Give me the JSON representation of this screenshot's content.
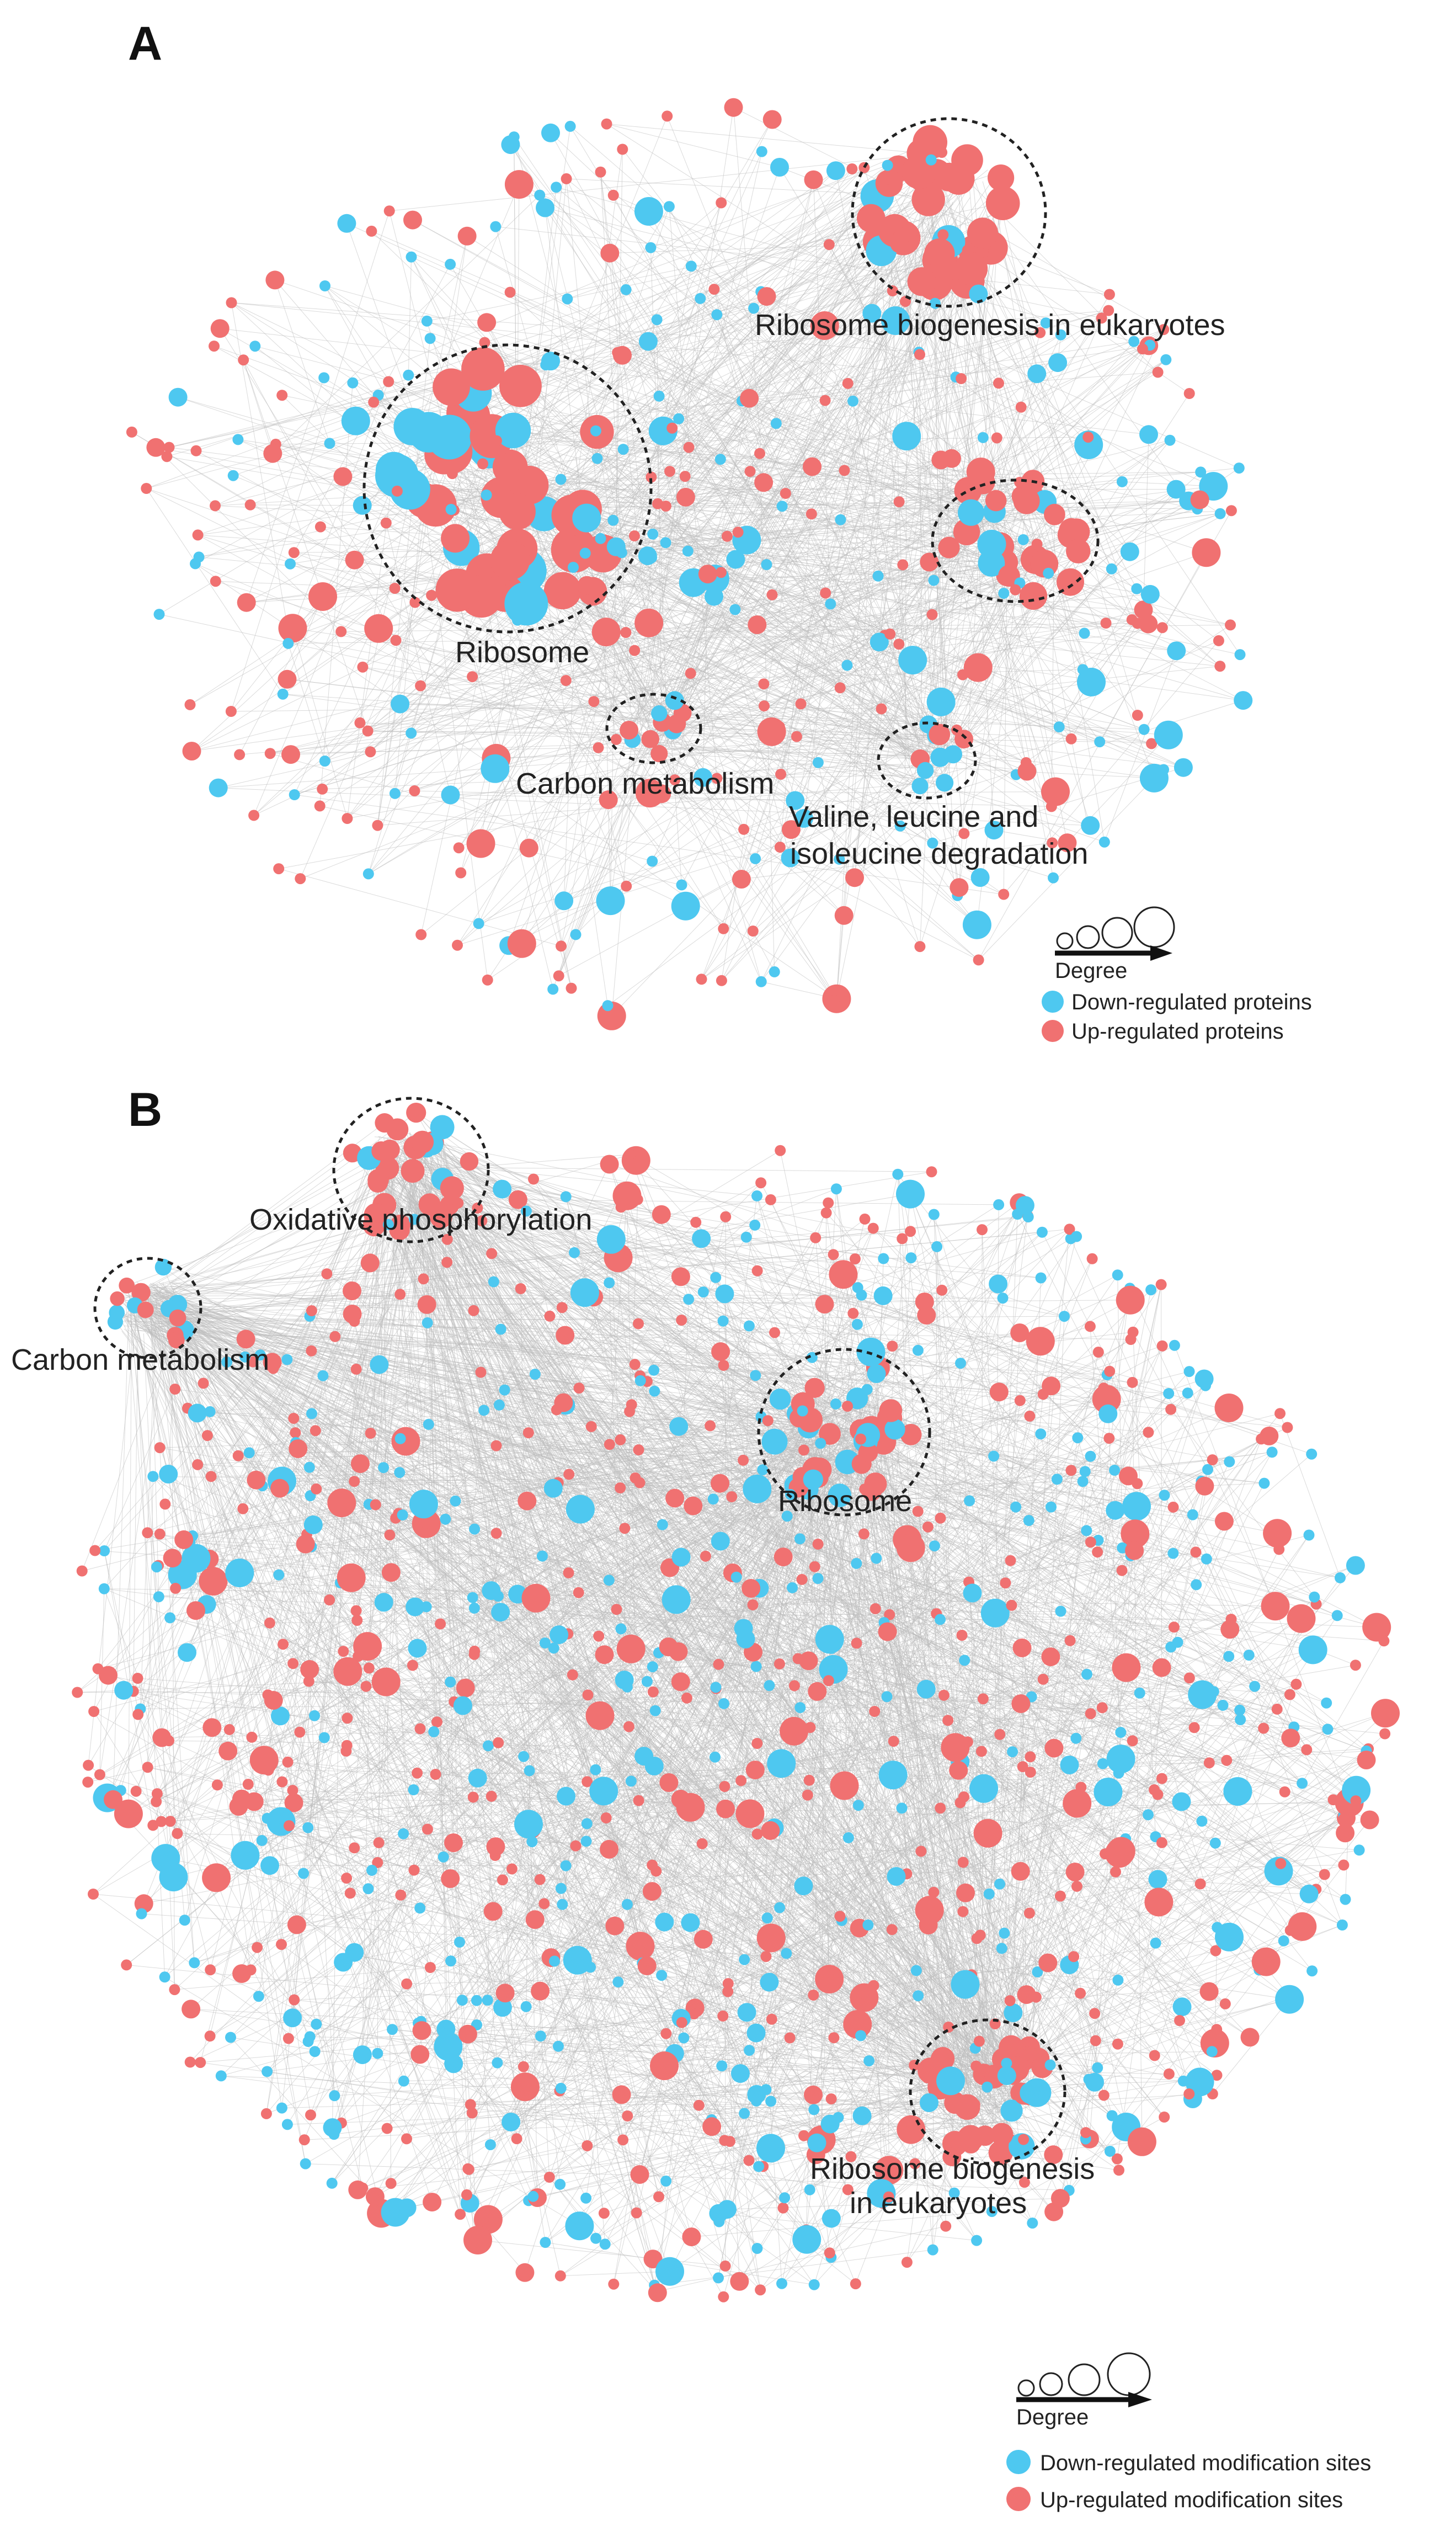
{
  "colors": {
    "down": "#4ec8f0",
    "up": "#f07171",
    "edge": "#bdbdbd",
    "ring": "#222222"
  },
  "panel_a": {
    "letter": "A",
    "clusters": [
      {
        "id": "ribosome-biogenesis",
        "label": "Ribosome biogenesis in eukaryotes"
      },
      {
        "id": "ribosome",
        "label": "Ribosome"
      },
      {
        "id": "carbon-metabolism",
        "label": "Carbon metabolism"
      },
      {
        "id": "valine",
        "label_line1": "Valine, leucine and",
        "label_line2": "isoleucine degradation"
      }
    ],
    "legend": {
      "degree_label": "Degree",
      "down_label": "Down-regulated proteins",
      "up_label": "Up-regulated proteins"
    }
  },
  "panel_b": {
    "letter": "B",
    "clusters": [
      {
        "id": "oxidative-phosphorylation",
        "label": "Oxidative phosphorylation"
      },
      {
        "id": "carbon-metabolism",
        "label": "Carbon metabolism"
      },
      {
        "id": "ribosome",
        "label": "Ribosome"
      },
      {
        "id": "ribosome-biogenesis",
        "label_line1": "Ribosome biogenesis",
        "label_line2": "in eukaryotes"
      }
    ],
    "legend": {
      "degree_label": "Degree",
      "down_label": "Down-regulated modification sites",
      "up_label": "Up-regulated modification sites"
    }
  }
}
